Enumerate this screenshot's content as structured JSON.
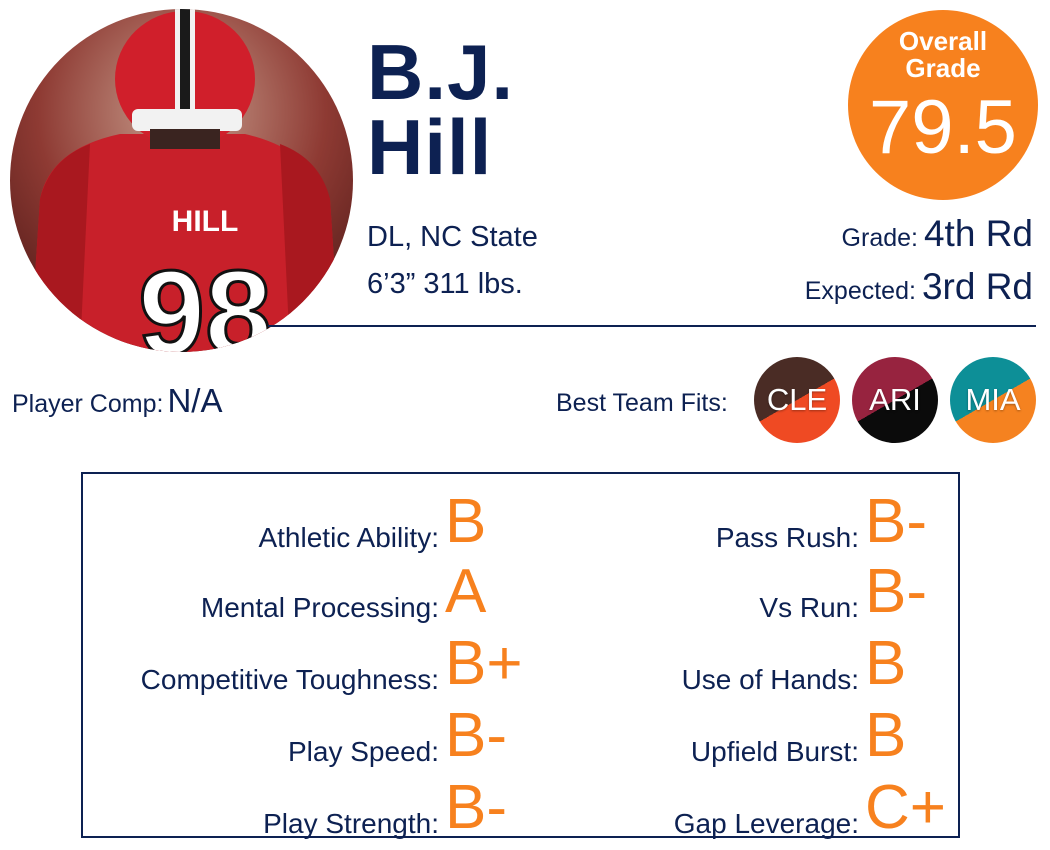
{
  "player": {
    "first_name": "B.J.",
    "last_name": "Hill",
    "position_school": "DL, NC State",
    "height_weight": "6’3” 311 lbs.",
    "jersey_name": "HILL",
    "jersey_number": "98"
  },
  "overall": {
    "label_line1": "Overall",
    "label_line2": "Grade",
    "value": "79.5",
    "color": "#f7811e"
  },
  "draft": {
    "grade_label": "Grade:",
    "grade_value": "4th Rd",
    "expected_label": "Expected:",
    "expected_value": "3rd Rd"
  },
  "comp": {
    "label": "Player Comp:",
    "value": "N/A"
  },
  "team_fits": {
    "label": "Best Team Fits:",
    "teams": [
      {
        "abbr": "CLE",
        "colors": [
          "#4a2c25",
          "#ef4a23"
        ]
      },
      {
        "abbr": "ARI",
        "colors": [
          "#97233f",
          "#0b0b0b"
        ]
      },
      {
        "abbr": "MIA",
        "colors": [
          "#0d8f97",
          "#f58220"
        ]
      }
    ]
  },
  "traits": {
    "left": [
      {
        "label": "Athletic Ability:",
        "grade": "B"
      },
      {
        "label": "Mental Processing:",
        "grade": "A"
      },
      {
        "label": "Competitive Toughness:",
        "grade": "B+"
      },
      {
        "label": "Play Speed:",
        "grade": "B-"
      },
      {
        "label": "Play Strength:",
        "grade": "B-"
      }
    ],
    "right": [
      {
        "label": "Pass Rush:",
        "grade": "B-"
      },
      {
        "label": "Vs Run:",
        "grade": "B-"
      },
      {
        "label": "Use of Hands:",
        "grade": "B"
      },
      {
        "label": "Upfield Burst:",
        "grade": "B"
      },
      {
        "label": "Gap Leverage:",
        "grade": "C+"
      }
    ]
  },
  "colors": {
    "navy": "#0d2152",
    "accent": "#f7811e"
  }
}
